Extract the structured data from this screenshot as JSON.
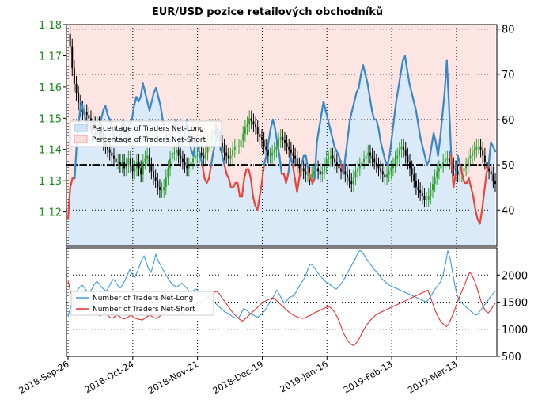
{
  "chart_data": {
    "title": "EUR/USD pozice retailových obchodníků",
    "colors": {
      "net_long_fill": "#cfe3f7",
      "net_short_fill": "#fbdcd8",
      "long_line": "#3a87c8",
      "short_line": "#e8453c",
      "candle_up": "#2ca02c",
      "candle_down": "#000000",
      "axis_left_text": "#1a8a1a"
    },
    "x_tick_labels": [
      "2018-Sep-26",
      "2018-Oct-24",
      "2018-Nov-21",
      "2018-Dec-19",
      "2019-Jan-16",
      "2019-Feb-13",
      "2019-Mar-13"
    ],
    "top_panel": {
      "type": "line",
      "left_axis": {
        "ticks": [
          "1.12",
          "1.13",
          "1.14",
          "1.15",
          "1.16",
          "1.17",
          "1.18"
        ],
        "ylim": [
          1.109,
          1.18
        ]
      },
      "right_axis": {
        "ticks": [
          "40",
          "50",
          "60",
          "70",
          "80"
        ],
        "ylim": [
          32,
          81
        ]
      },
      "reference_level": 50,
      "grid": true,
      "legend": {
        "placement": "left",
        "entries": [
          "Percentage of Traders Net-Long",
          "Percentage of Traders Net-Short"
        ]
      },
      "series": [
        {
          "name": "Percentage of Traders Net-Long",
          "axis": "right",
          "values": [
            38,
            45,
            47,
            47,
            55,
            60,
            64,
            62,
            60,
            59,
            58,
            57,
            56,
            57,
            58,
            60,
            62,
            63,
            61,
            60,
            58,
            56,
            55,
            55,
            57,
            60,
            58,
            56,
            59,
            60,
            63,
            65,
            64,
            65,
            68,
            66,
            64,
            62,
            64,
            66,
            67,
            65,
            63,
            60,
            58,
            56,
            55,
            56,
            58,
            60,
            58,
            56,
            55,
            57,
            60,
            56,
            53,
            52,
            56,
            54,
            52,
            50,
            47,
            46,
            47,
            50,
            53,
            55,
            58,
            55,
            52,
            50,
            48,
            47,
            45,
            45,
            46,
            46,
            43,
            43,
            47,
            49,
            49,
            47,
            43,
            41,
            40,
            43,
            46,
            50,
            52,
            55,
            58,
            60,
            58,
            55,
            52,
            48,
            48,
            46,
            48,
            52,
            50,
            47,
            44,
            47,
            50,
            52,
            52,
            49,
            47,
            46,
            47,
            55,
            58,
            61,
            64,
            62,
            60,
            58,
            56,
            54,
            53,
            52,
            50,
            48,
            52,
            56,
            60,
            62,
            64,
            66,
            67,
            70,
            72,
            70,
            68,
            65,
            62,
            60,
            60,
            58,
            55,
            53,
            51,
            50,
            52,
            56,
            60,
            64,
            67,
            70,
            73,
            74,
            71,
            68,
            66,
            64,
            62,
            59,
            56,
            54,
            52,
            50,
            51,
            54,
            57,
            55,
            52,
            56,
            61,
            66,
            73,
            63,
            52,
            45,
            48,
            52,
            50,
            48,
            46,
            46,
            47,
            45,
            43,
            40,
            38,
            37,
            40,
            44,
            48,
            50,
            55,
            54,
            53
          ]
        },
        {
          "name": "Percentage of Traders Net-Short",
          "axis": "right",
          "values": []
        },
        {
          "name": "EUR/USD",
          "axis": "left",
          "kind": "candlestick",
          "values": [
            1.177,
            1.173,
            1.166,
            1.161,
            1.158,
            1.155,
            1.153,
            1.152,
            1.152,
            1.151,
            1.15,
            1.149,
            1.148,
            1.147,
            1.148,
            1.146,
            1.145,
            1.142,
            1.141,
            1.14,
            1.139,
            1.138,
            1.137,
            1.136,
            1.136,
            1.135,
            1.136,
            1.134,
            1.135,
            1.137,
            1.135,
            1.133,
            1.134,
            1.136,
            1.134,
            1.132,
            1.136,
            1.137,
            1.138,
            1.135,
            1.133,
            1.131,
            1.13,
            1.128,
            1.127,
            1.127,
            1.128,
            1.131,
            1.134,
            1.137,
            1.139,
            1.139,
            1.14,
            1.138,
            1.137,
            1.136,
            1.135,
            1.134,
            1.135,
            1.136,
            1.137,
            1.138,
            1.138,
            1.139,
            1.138,
            1.137,
            1.139,
            1.142,
            1.143,
            1.144,
            1.146,
            1.145,
            1.144,
            1.142,
            1.141,
            1.139,
            1.138,
            1.137,
            1.138,
            1.14,
            1.141,
            1.141,
            1.141,
            1.143,
            1.145,
            1.147,
            1.148,
            1.15,
            1.149,
            1.148,
            1.147,
            1.145,
            1.144,
            1.143,
            1.141,
            1.14,
            1.138,
            1.138,
            1.139,
            1.14,
            1.141,
            1.143,
            1.144,
            1.143,
            1.142,
            1.141,
            1.14,
            1.139,
            1.138,
            1.137,
            1.135,
            1.134,
            1.134,
            1.133,
            1.132,
            1.132,
            1.131,
            1.132,
            1.133,
            1.134,
            1.133,
            1.132,
            1.133,
            1.135,
            1.137,
            1.137,
            1.138,
            1.137,
            1.136,
            1.135,
            1.134,
            1.133,
            1.133,
            1.132,
            1.131,
            1.13,
            1.129,
            1.131,
            1.133,
            1.134,
            1.135,
            1.136,
            1.137,
            1.138,
            1.139,
            1.138,
            1.137,
            1.136,
            1.135,
            1.134,
            1.133,
            1.132,
            1.131,
            1.132,
            1.133,
            1.134,
            1.135,
            1.137,
            1.138,
            1.14,
            1.141,
            1.14,
            1.138,
            1.136,
            1.134,
            1.132,
            1.13,
            1.128,
            1.127,
            1.126,
            1.125,
            1.124,
            1.124,
            1.125,
            1.127,
            1.129,
            1.131,
            1.133,
            1.134,
            1.135,
            1.136,
            1.137,
            1.137,
            1.136,
            1.135,
            1.134,
            1.133,
            1.132,
            1.132,
            1.133,
            1.134,
            1.135,
            1.137,
            1.138,
            1.139,
            1.14,
            1.141,
            1.141,
            1.14,
            1.138,
            1.136,
            1.134,
            1.133,
            1.132,
            1.13,
            1.129
          ]
        }
      ]
    },
    "bottom_panel": {
      "type": "line",
      "right_axis": {
        "ticks": [
          "500",
          "1000",
          "1500",
          "2000"
        ],
        "ylim": [
          500,
          2500
        ]
      },
      "grid": true,
      "legend": {
        "placement": "left",
        "entries": [
          "Number of Traders Net-Long",
          "Number of Traders Net-Short"
        ]
      },
      "series": [
        {
          "name": "Number of Traders Net-Long",
          "values": [
            1230,
            1400,
            1560,
            1650,
            1720,
            1780,
            1810,
            1760,
            1700,
            1680,
            1740,
            1820,
            1880,
            1850,
            1780,
            1740,
            1700,
            1760,
            1850,
            1920,
            1880,
            1800,
            1760,
            1820,
            1900,
            2000,
            2100,
            2020,
            1960,
            2040,
            2150,
            2280,
            2350,
            2230,
            2100,
            2050,
            2200,
            2380,
            2260,
            2180,
            2100,
            2020,
            1950,
            1880,
            1820,
            1800,
            1780,
            1820,
            1850,
            1800,
            1760,
            1700,
            1680,
            1720,
            1740,
            1700,
            1660,
            1620,
            1600,
            1580,
            1560,
            1520,
            1480,
            1440,
            1400,
            1360,
            1320,
            1300,
            1280,
            1240,
            1220,
            1200,
            1220,
            1300,
            1380,
            1360,
            1320,
            1280,
            1260,
            1240,
            1220,
            1260,
            1300,
            1350,
            1420,
            1500,
            1560,
            1640,
            1720,
            1640,
            1560,
            1480,
            1520,
            1580,
            1600,
            1620,
            1680,
            1760,
            1840,
            1900,
            1980,
            2100,
            2200,
            2180,
            2120,
            2050,
            2000,
            1950,
            1900,
            1860,
            1840,
            1800,
            1760,
            1740,
            1780,
            1840,
            1900,
            1980,
            2060,
            2140,
            2220,
            2300,
            2400,
            2450,
            2420,
            2350,
            2280,
            2220,
            2160,
            2100,
            2060,
            2000,
            1940,
            1900,
            1860,
            1820,
            1800,
            1780,
            1760,
            1740,
            1720,
            1700,
            1680,
            1660,
            1640,
            1620,
            1600,
            1580,
            1560,
            1540,
            1520,
            1500,
            1560,
            1620,
            1700,
            1760,
            1820,
            1880,
            2000,
            2200,
            2450,
            2300,
            2050,
            1800,
            1620,
            1520,
            1480,
            1440,
            1400,
            1360,
            1320,
            1280,
            1260,
            1300,
            1360,
            1420,
            1480,
            1540,
            1600,
            1650,
            1700
          ]
        },
        {
          "name": "Number of Traders Net-Short",
          "values": [
            1900,
            1700,
            1560,
            1480,
            1440,
            1420,
            1400,
            1380,
            1360,
            1340,
            1320,
            1300,
            1280,
            1260,
            1250,
            1280,
            1300,
            1260,
            1220,
            1200,
            1230,
            1260,
            1240,
            1210,
            1190,
            1200,
            1230,
            1260,
            1230,
            1200,
            1190,
            1180,
            1170,
            1200,
            1230,
            1260,
            1240,
            1210,
            1200,
            1220,
            1260,
            1300,
            1340,
            1380,
            1400,
            1380,
            1360,
            1340,
            1320,
            1300,
            1320,
            1350,
            1380,
            1410,
            1440,
            1460,
            1480,
            1500,
            1520,
            1550,
            1580,
            1620,
            1650,
            1680,
            1700,
            1660,
            1600,
            1540,
            1480,
            1420,
            1360,
            1300,
            1260,
            1220,
            1180,
            1150,
            1180,
            1220,
            1260,
            1300,
            1340,
            1380,
            1420,
            1460,
            1500,
            1520,
            1540,
            1560,
            1580,
            1560,
            1520,
            1480,
            1440,
            1400,
            1360,
            1320,
            1290,
            1260,
            1240,
            1220,
            1210,
            1200,
            1210,
            1230,
            1250,
            1270,
            1300,
            1320,
            1340,
            1360,
            1380,
            1400,
            1420,
            1400,
            1360,
            1300,
            1220,
            1120,
            1000,
            900,
            820,
            760,
            720,
            700,
            740,
            800,
            880,
            960,
            1040,
            1100,
            1160,
            1200,
            1240,
            1280,
            1300,
            1320,
            1340,
            1360,
            1380,
            1400,
            1420,
            1440,
            1460,
            1480,
            1500,
            1520,
            1540,
            1560,
            1580,
            1600,
            1620,
            1640,
            1660,
            1680,
            1700,
            1720,
            1600,
            1480,
            1360,
            1260,
            1180,
            1120,
            1080,
            1050,
            1100,
            1200,
            1300,
            1420,
            1540,
            1640,
            1740,
            1840,
            1960,
            2050,
            2000,
            1900,
            1780,
            1640,
            1500,
            1400,
            1330,
            1300,
            1350,
            1420,
            1480
          ]
        }
      ]
    }
  }
}
